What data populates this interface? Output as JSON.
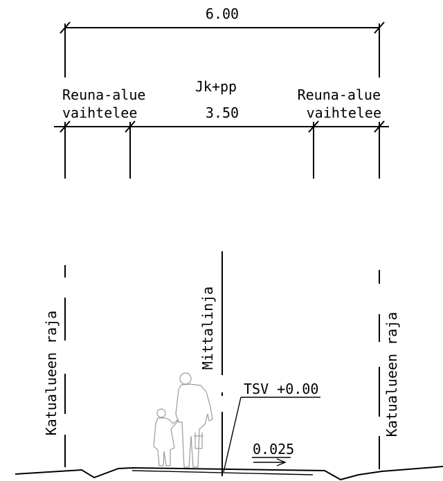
{
  "dimensions": {
    "total_width": "6.00",
    "path_label": "Jk+pp",
    "path_width": "3.50",
    "left_edge_line1": "Reuna-alue",
    "left_edge_line2": "vaihtelee",
    "right_edge_line1": "Reuna-alue",
    "right_edge_line2": "vaihtelee"
  },
  "lines": {
    "left_boundary": "Katualueen raja",
    "center": "Mittalinja",
    "right_boundary": "Katualueen raja"
  },
  "annotations": {
    "tsv": "TSV +0.00",
    "slope": "0.025"
  },
  "icons": {
    "pedestrians": "adult-and-child-pedestrian-icon"
  }
}
